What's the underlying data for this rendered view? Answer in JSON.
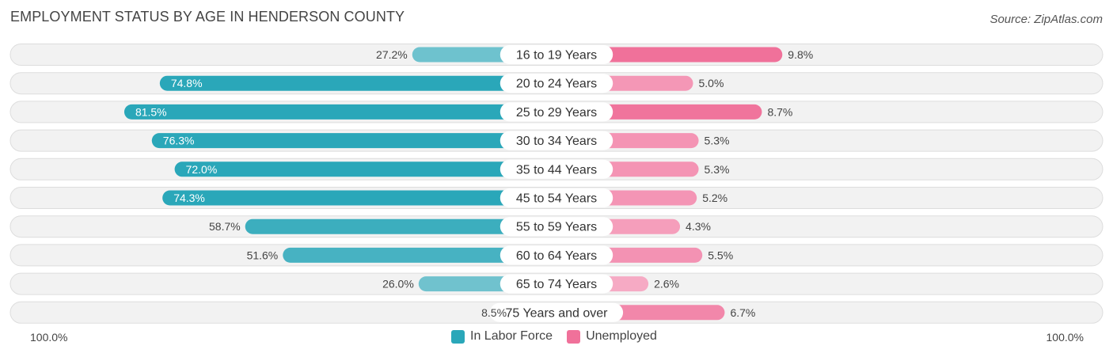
{
  "title": "EMPLOYMENT STATUS BY AGE IN HENDERSON COUNTY",
  "source": "Source: ZipAtlas.com",
  "colors": {
    "labor_dark": "#2aa7b9",
    "labor_light": "#79c6d1",
    "unemployed_dark": "#f0719a",
    "unemployed_light": "#f6aac4",
    "row_bg": "#f2f2f2",
    "row_border": "#dddddd"
  },
  "chart_data": {
    "type": "bar",
    "title": "EMPLOYMENT STATUS BY AGE IN HENDERSON COUNTY",
    "orientation": "horizontal-diverging",
    "categories": [
      "16 to 19 Years",
      "20 to 24 Years",
      "25 to 29 Years",
      "30 to 34 Years",
      "35 to 44 Years",
      "45 to 54 Years",
      "55 to 59 Years",
      "60 to 64 Years",
      "65 to 74 Years",
      "75 Years and over"
    ],
    "series": [
      {
        "name": "In Labor Force",
        "values": [
          27.2,
          74.8,
          81.5,
          76.3,
          72.0,
          74.3,
          58.7,
          51.6,
          26.0,
          8.5
        ]
      },
      {
        "name": "Unemployed",
        "values": [
          9.8,
          5.0,
          8.7,
          5.3,
          5.3,
          5.2,
          4.3,
          5.5,
          2.6,
          6.7
        ]
      }
    ],
    "value_labels": {
      "In Labor Force": [
        "27.2%",
        "74.8%",
        "81.5%",
        "76.3%",
        "72.0%",
        "74.3%",
        "58.7%",
        "51.6%",
        "26.0%",
        "8.5%"
      ],
      "Unemployed": [
        "9.8%",
        "5.0%",
        "8.7%",
        "5.3%",
        "5.3%",
        "5.2%",
        "4.3%",
        "5.5%",
        "2.6%",
        "6.7%"
      ]
    },
    "axis_min_label": "100.0%",
    "axis_max_label": "100.0%",
    "xlim": [
      -100,
      100
    ],
    "legend_position": "bottom-center"
  },
  "legend": {
    "labor": "In Labor Force",
    "unemployed": "Unemployed"
  }
}
